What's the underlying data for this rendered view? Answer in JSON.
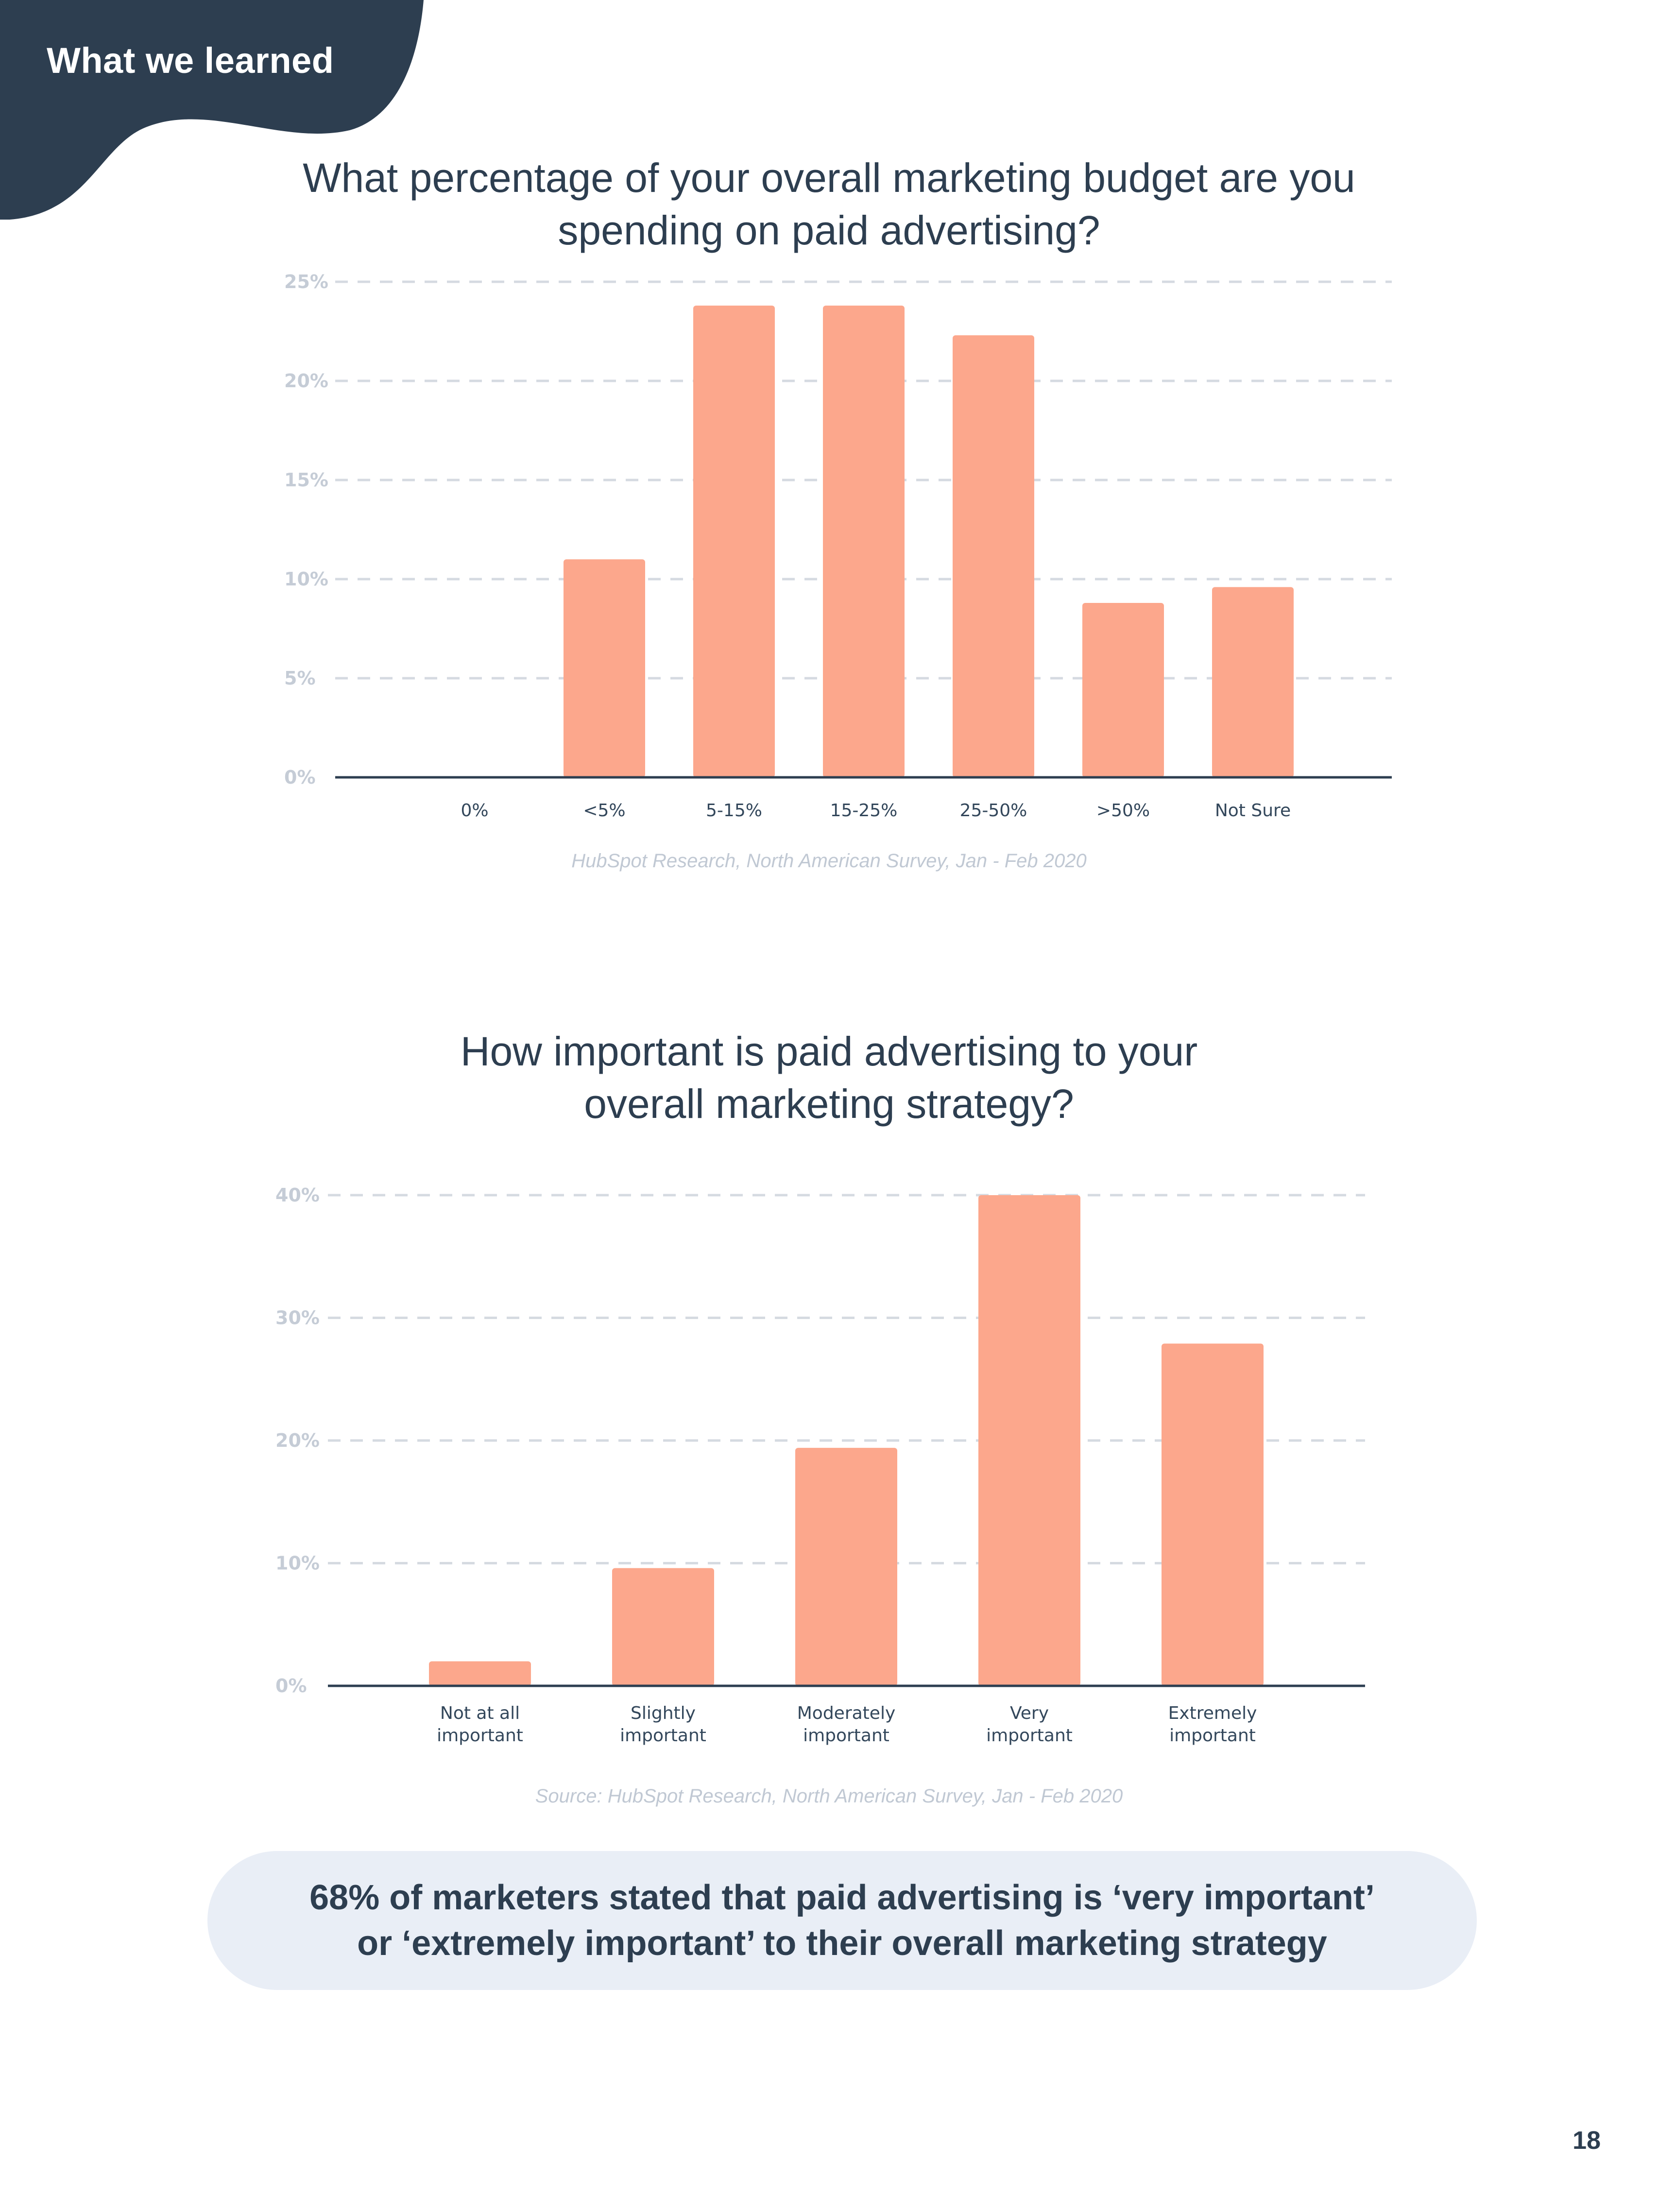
{
  "header": {
    "section_label": "What we learned"
  },
  "colors": {
    "bar": "#fca78c",
    "navy": "#2d3e50",
    "grid": "#d5dae1",
    "tick": "#c5ccd6"
  },
  "chart_data": [
    {
      "type": "bar",
      "title": "What percentage of your overall marketing budget are you spending on paid advertising?",
      "title_lines": [
        "What percentage of your overall marketing budget are you",
        "spending on paid advertising?"
      ],
      "categories": [
        "0%",
        "<5%",
        "5-15%",
        "15-25%",
        "25-50%",
        ">50%",
        "Not Sure"
      ],
      "category_lines": [
        [
          "0%"
        ],
        [
          "<5%"
        ],
        [
          "5-15%"
        ],
        [
          "15-25%"
        ],
        [
          "25-50%"
        ],
        [
          ">50%"
        ],
        [
          "Not Sure"
        ]
      ],
      "values": [
        0,
        11,
        23.8,
        23.8,
        22.3,
        8.8,
        9.6
      ],
      "ylim": [
        0,
        25
      ],
      "yticks": [
        0,
        5,
        10,
        15,
        20,
        25
      ],
      "ytick_labels": [
        "0%",
        "5%",
        "10%",
        "15%",
        "20%",
        "25%"
      ],
      "xlabel": "",
      "ylabel": "",
      "grid": true,
      "source": "HubSpot Research, North American Survey, Jan - Feb 2020"
    },
    {
      "type": "bar",
      "title": "How important is paid advertising to your overall marketing strategy?",
      "title_lines": [
        "How important is paid advertising to your",
        "overall marketing strategy?"
      ],
      "categories": [
        "Not at all important",
        "Slightly important",
        "Moderately important",
        "Very important",
        "Extremely important"
      ],
      "category_lines": [
        [
          "Not at all",
          "important"
        ],
        [
          "Slightly",
          "important"
        ],
        [
          "Moderately",
          "important"
        ],
        [
          "Very",
          "important"
        ],
        [
          "Extremely",
          "important"
        ]
      ],
      "values": [
        2,
        9.6,
        19.4,
        40,
        27.9
      ],
      "ylim": [
        0,
        40
      ],
      "yticks": [
        0,
        10,
        20,
        30,
        40
      ],
      "ytick_labels": [
        "0%",
        "10%",
        "20%",
        "30%",
        "40%"
      ],
      "xlabel": "",
      "ylabel": "",
      "grid": true,
      "source": "Source: HubSpot Research, North American Survey, Jan - Feb 2020"
    }
  ],
  "callout": {
    "lines": [
      "68% of marketers stated that paid advertising is ‘very important’",
      "or ‘extremely important’ to their overall marketing strategy"
    ]
  },
  "page_number": "18"
}
